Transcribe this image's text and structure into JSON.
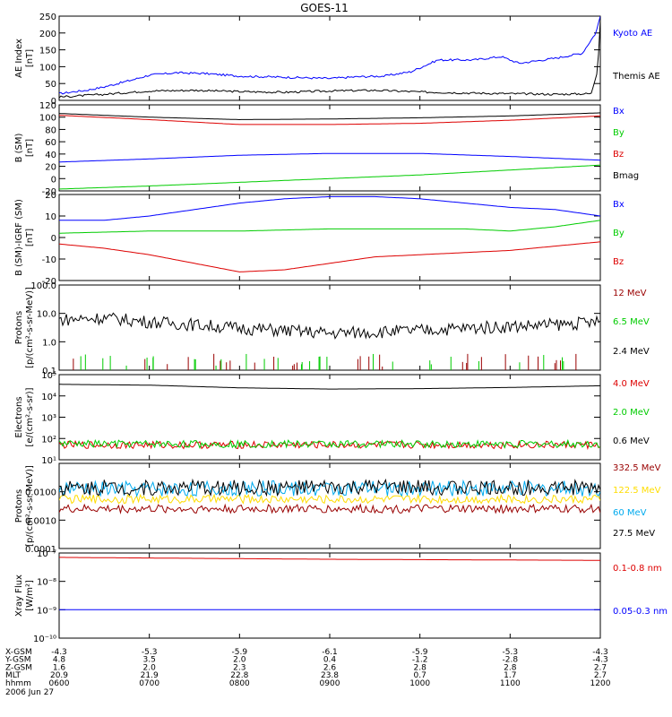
{
  "title": "GOES-11",
  "colors": {
    "black": "#000000",
    "blue": "#0000ff",
    "red": "#dd0000",
    "green": "#00cc00",
    "darkred": "#990000",
    "yellow": "#ffdd00",
    "cyan": "#00aaee"
  },
  "chart_data": [
    {
      "type": "line",
      "ylabel": [
        "AE Index",
        "[nT]"
      ],
      "ylim": [
        0,
        250
      ],
      "scale": "linear",
      "ticks": [
        "0",
        "50",
        "100",
        "150",
        "200",
        "250"
      ],
      "series": [
        {
          "name": "Kyoto AE",
          "color": "#0000ff",
          "x": [
            0,
            0.3,
            0.5,
            0.8,
            1,
            1.3,
            1.6,
            2,
            2.3,
            2.6,
            3,
            3.3,
            3.6,
            3.9,
            4.2,
            4.6,
            4.9,
            5.1,
            5.5,
            5.8,
            5.95,
            6
          ],
          "y": [
            20,
            30,
            40,
            60,
            75,
            82,
            80,
            72,
            70,
            68,
            65,
            70,
            72,
            85,
            120,
            120,
            130,
            110,
            125,
            140,
            200,
            250
          ]
        },
        {
          "name": "Themis AE",
          "color": "#000000",
          "x": [
            0,
            0.5,
            1,
            1.5,
            2,
            2.5,
            3,
            3.5,
            4,
            4.5,
            5,
            5.5,
            5.9,
            5.97,
            6
          ],
          "y": [
            10,
            18,
            28,
            30,
            26,
            24,
            28,
            30,
            25,
            22,
            20,
            18,
            20,
            90,
            240
          ]
        }
      ]
    },
    {
      "type": "line",
      "ylabel": [
        "B (SM)",
        "[nT]"
      ],
      "ylim": [
        -20,
        120
      ],
      "scale": "linear",
      "ticks": [
        "-20",
        "0",
        "20",
        "40",
        "60",
        "80",
        "100",
        "120"
      ],
      "series": [
        {
          "name": "Bx",
          "color": "#0000ff",
          "x": [
            0,
            1,
            2,
            3,
            4,
            5,
            6
          ],
          "y": [
            27,
            32,
            38,
            41,
            41,
            36,
            30
          ]
        },
        {
          "name": "By",
          "color": "#00cc00",
          "x": [
            0,
            1,
            2,
            3,
            4,
            5,
            6
          ],
          "y": [
            -17,
            -12,
            -6,
            0,
            6,
            14,
            22
          ]
        },
        {
          "name": "Bz",
          "color": "#dd0000",
          "x": [
            0,
            1,
            2,
            3,
            4,
            5,
            6
          ],
          "y": [
            103,
            96,
            88,
            88,
            90,
            95,
            102
          ]
        },
        {
          "name": "Bmag",
          "color": "#000000",
          "x": [
            0,
            1,
            2,
            3,
            4,
            5,
            6
          ],
          "y": [
            106,
            100,
            96,
            97,
            99,
            102,
            107
          ]
        }
      ]
    },
    {
      "type": "line",
      "ylabel": [
        "B (SM)-IGRF (SM)",
        "[nT]"
      ],
      "ylim": [
        -20,
        20
      ],
      "scale": "linear",
      "ticks": [
        "-20",
        "-10",
        "0",
        "10",
        "20"
      ],
      "series": [
        {
          "name": "Bx",
          "color": "#0000ff",
          "x": [
            0,
            0.5,
            1,
            1.5,
            2,
            2.5,
            3,
            3.5,
            4,
            4.5,
            5,
            5.5,
            6
          ],
          "y": [
            8,
            8,
            10,
            13,
            16,
            18,
            19,
            19,
            18,
            16,
            14,
            13,
            10
          ]
        },
        {
          "name": "By",
          "color": "#00cc00",
          "x": [
            0,
            1,
            2,
            3,
            4,
            4.5,
            5,
            5.5,
            6
          ],
          "y": [
            2,
            3,
            3,
            4,
            4,
            4,
            3,
            5,
            8
          ]
        },
        {
          "name": "Bz",
          "color": "#dd0000",
          "x": [
            0,
            0.5,
            1,
            1.5,
            2,
            2.5,
            3,
            3.5,
            4,
            4.5,
            5,
            5.5,
            6
          ],
          "y": [
            -3,
            -5,
            -8,
            -12,
            -16,
            -15,
            -12,
            -9,
            -8,
            -7,
            -6,
            -4,
            -2
          ]
        }
      ]
    },
    {
      "type": "line",
      "ylabel": [
        "Protons",
        "[p/(cm²-s-sr-MeV)]"
      ],
      "ylim": [
        0.1,
        100
      ],
      "scale": "log",
      "ticks": [
        "0.1",
        "1.0",
        "10.0",
        "100.0"
      ],
      "series": [
        {
          "name": "12 MeV",
          "color": "#990000",
          "x": [],
          "y": []
        },
        {
          "name": "6.5 MeV",
          "color": "#00cc00",
          "x": [],
          "y": []
        },
        {
          "name": "2.4 MeV",
          "color": "#000000",
          "x": [
            0,
            0.5,
            1,
            1.5,
            2,
            2.5,
            3,
            3.5,
            4,
            4.5,
            5,
            5.5,
            6
          ],
          "y": [
            6,
            7,
            5,
            4,
            3,
            2.5,
            2,
            2.2,
            2.5,
            3,
            3.5,
            4,
            5
          ]
        }
      ]
    },
    {
      "type": "line",
      "ylabel": [
        "Electrons",
        "[e/(cm²-s-sr)]"
      ],
      "ylim": [
        10,
        100000
      ],
      "scale": "log",
      "ticks": [
        "10¹",
        "10²",
        "10³",
        "10⁴",
        "10⁵"
      ],
      "series": [
        {
          "name": "4.0 MeV",
          "color": "#dd0000",
          "x": [
            0,
            6
          ],
          "y": [
            50,
            50
          ]
        },
        {
          "name": "2.0 MeV",
          "color": "#00cc00",
          "x": [
            0,
            6
          ],
          "y": [
            55,
            55
          ]
        },
        {
          "name": "0.6 MeV",
          "color": "#000000",
          "x": [
            0,
            1,
            2,
            3,
            4,
            5,
            6
          ],
          "y": [
            35000,
            32000,
            24000,
            21000,
            22000,
            25000,
            30000
          ]
        }
      ]
    },
    {
      "type": "line",
      "ylabel": [
        "Protons",
        "[p/(cm²-s-sr-MeV)]"
      ],
      "ylim": [
        0.0001,
        0.1
      ],
      "scale": "log",
      "ticks": [
        "0.0001",
        "0.0010",
        "0.0100"
      ],
      "series": [
        {
          "name": "332.5 MeV",
          "color": "#990000",
          "x": [
            0,
            6
          ],
          "y": [
            0.0025,
            0.0025
          ]
        },
        {
          "name": "122.5 MeV",
          "color": "#ffdd00",
          "x": [
            0,
            6
          ],
          "y": [
            0.0055,
            0.0055
          ]
        },
        {
          "name": "60 MeV",
          "color": "#00aaee",
          "x": [
            0,
            6
          ],
          "y": [
            0.013,
            0.013
          ]
        },
        {
          "name": "27.5 MeV",
          "color": "#000000",
          "x": [
            0,
            6
          ],
          "y": [
            0.014,
            0.014
          ]
        }
      ]
    },
    {
      "type": "line",
      "ylabel": [
        "Xray Flux",
        "[W/m²]"
      ],
      "ylim": [
        1e-10,
        1e-07
      ],
      "scale": "log",
      "ticks": [
        "10⁻¹⁰",
        "10⁻⁹",
        "10⁻⁸",
        "10⁻⁷"
      ],
      "series": [
        {
          "name": "0.1-0.8 nm",
          "color": "#dd0000",
          "x": [
            0,
            3,
            6
          ],
          "y": [
            7e-08,
            6e-08,
            5.5e-08
          ]
        },
        {
          "name": "0.05-0.3 nm",
          "color": "#0000ff",
          "x": [
            0,
            6
          ],
          "y": [
            1e-09,
            1e-09
          ]
        }
      ]
    }
  ],
  "orbit": {
    "labels": [
      "X-GSM",
      "Y-GSM",
      "Z-GSM",
      "MLT",
      "hhmm"
    ],
    "columns": [
      [
        "-4.3",
        "4.8",
        "1.6",
        "20.9",
        "0600"
      ],
      [
        "-5.3",
        "3.5",
        "2.0",
        "21.9",
        "0700"
      ],
      [
        "-5.9",
        "2.0",
        "2.3",
        "22.8",
        "0800"
      ],
      [
        "-6.1",
        "0.4",
        "2.6",
        "23.8",
        "0900"
      ],
      [
        "-5.9",
        "-1.2",
        "2.8",
        "0.7",
        "1000"
      ],
      [
        "-5.3",
        "-2.8",
        "2.8",
        "1.7",
        "1100"
      ],
      [
        "-4.3",
        "-4.3",
        "2.7",
        "2.7",
        "1200"
      ]
    ],
    "date": "2006 Jun 27"
  }
}
